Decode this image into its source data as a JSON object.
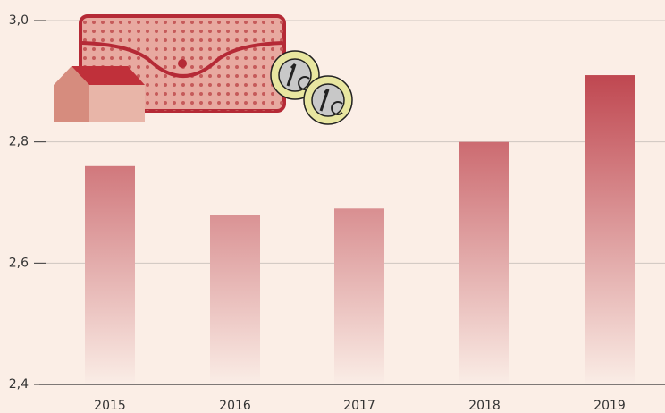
{
  "chart_data": {
    "type": "bar",
    "categories": [
      "2015",
      "2016",
      "2017",
      "2018",
      "2019"
    ],
    "values": [
      2.76,
      2.68,
      2.69,
      2.8,
      2.91
    ],
    "gradient": [
      "#b52a36",
      "#faede6"
    ],
    "ylim": [
      2.4,
      3.0
    ],
    "yticks": [
      {
        "value": 2.4,
        "label": "2,4"
      },
      {
        "value": 2.6,
        "label": "2,6"
      },
      {
        "value": 2.8,
        "label": "2,8"
      },
      {
        "value": 3.0,
        "label": "3,0"
      }
    ],
    "grid": true
  }
}
